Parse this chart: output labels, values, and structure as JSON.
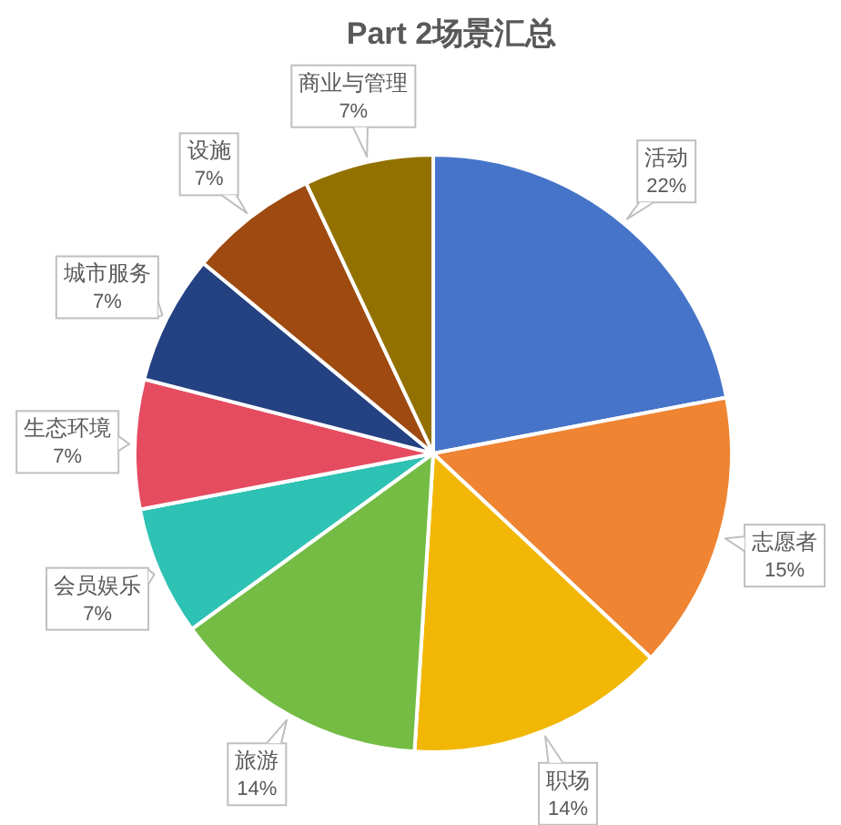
{
  "chart_data": {
    "type": "pie",
    "title": "Part 2场景汇总",
    "categories": [
      "活动",
      "志愿者",
      "职场",
      "旅游",
      "会员娱乐",
      "生态环境",
      "城市服务",
      "设施",
      "商业与管理"
    ],
    "values": [
      22,
      15,
      14,
      14,
      7,
      7,
      7,
      7,
      7
    ],
    "colors": [
      "#4674c9",
      "#ef8432",
      "#f2b705",
      "#74bc44",
      "#2ec2b4",
      "#e64c60",
      "#244181",
      "#9e4a10",
      "#937100"
    ],
    "value_labels": [
      "22%",
      "15%",
      "14%",
      "14%",
      "7%",
      "7%",
      "7%",
      "7%",
      "7%"
    ]
  }
}
